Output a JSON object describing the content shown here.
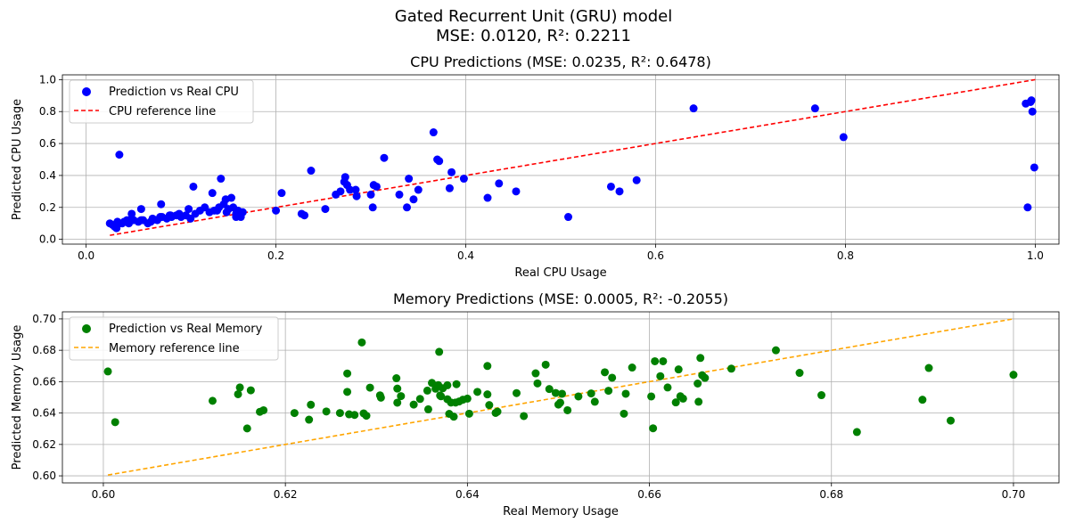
{
  "figure": {
    "title_line1": "Gated Recurrent Unit (GRU) model",
    "title_line2": "MSE: 0.0120, R²: 0.2211"
  },
  "chart_data": [
    {
      "type": "scatter",
      "title": "CPU Predictions (MSE: 0.0235, R²: 0.6478)",
      "xlabel": "Real CPU Usage",
      "ylabel": "Predicted CPU Usage",
      "xlim": [
        -0.025,
        1.025
      ],
      "ylim": [
        -0.03,
        1.03
      ],
      "xticks": [
        0.0,
        0.2,
        0.4,
        0.6,
        0.8,
        1.0
      ],
      "xtick_labels": [
        "0.0",
        "0.2",
        "0.4",
        "0.6",
        "0.8",
        "1.0"
      ],
      "yticks": [
        0.0,
        0.2,
        0.4,
        0.6,
        0.8,
        1.0
      ],
      "ytick_labels": [
        "0.0",
        "0.2",
        "0.4",
        "0.6",
        "0.8",
        "1.0"
      ],
      "grid": true,
      "legend_position": "top-left",
      "series": [
        {
          "name": "Prediction vs Real CPU",
          "kind": "scatter",
          "color": "#0000ff",
          "x": [
            0.025,
            0.03,
            0.032,
            0.035,
            0.04,
            0.045,
            0.05,
            0.055,
            0.06,
            0.065,
            0.07,
            0.075,
            0.08,
            0.085,
            0.09,
            0.095,
            0.1,
            0.105,
            0.11,
            0.115,
            0.12,
            0.125,
            0.13,
            0.135,
            0.14,
            0.145,
            0.15,
            0.155,
            0.16,
            0.165,
            0.028,
            0.033,
            0.038,
            0.043,
            0.048,
            0.058,
            0.068,
            0.078,
            0.088,
            0.098,
            0.108,
            0.138,
            0.148,
            0.158,
            0.163,
            0.035,
            0.048,
            0.058,
            0.07,
            0.079,
            0.089,
            0.113,
            0.133,
            0.142,
            0.147,
            0.153,
            0.158,
            0.2,
            0.206,
            0.227,
            0.23,
            0.237,
            0.252,
            0.263,
            0.268,
            0.272,
            0.273,
            0.275,
            0.278,
            0.284,
            0.285,
            0.3,
            0.302,
            0.303,
            0.306,
            0.314,
            0.33,
            0.338,
            0.34,
            0.345,
            0.35,
            0.366,
            0.37,
            0.372,
            0.383,
            0.385,
            0.398,
            0.423,
            0.435,
            0.453,
            0.508,
            0.553,
            0.562,
            0.58,
            0.64,
            0.768,
            0.798,
            0.99,
            0.992,
            0.995,
            0.996,
            0.997,
            0.999
          ],
          "y": [
            0.1,
            0.08,
            0.07,
            0.1,
            0.11,
            0.1,
            0.12,
            0.11,
            0.12,
            0.1,
            0.13,
            0.12,
            0.14,
            0.13,
            0.14,
            0.15,
            0.14,
            0.15,
            0.13,
            0.16,
            0.18,
            0.2,
            0.17,
            0.18,
            0.2,
            0.22,
            0.19,
            0.2,
            0.18,
            0.17,
            0.09,
            0.11,
            0.1,
            0.12,
            0.16,
            0.12,
            0.11,
            0.14,
            0.15,
            0.16,
            0.19,
            0.18,
            0.17,
            0.16,
            0.14,
            0.53,
            0.13,
            0.19,
            0.12,
            0.22,
            0.15,
            0.33,
            0.29,
            0.38,
            0.25,
            0.26,
            0.14,
            0.18,
            0.29,
            0.16,
            0.15,
            0.43,
            0.19,
            0.28,
            0.3,
            0.36,
            0.39,
            0.34,
            0.31,
            0.31,
            0.27,
            0.28,
            0.2,
            0.34,
            0.33,
            0.51,
            0.28,
            0.2,
            0.38,
            0.25,
            0.31,
            0.67,
            0.5,
            0.49,
            0.32,
            0.42,
            0.38,
            0.26,
            0.35,
            0.3,
            0.14,
            0.33,
            0.3,
            0.37,
            0.82,
            0.82,
            0.64,
            0.85,
            0.2,
            0.86,
            0.87,
            0.8,
            0.45
          ]
        },
        {
          "name": "CPU reference line",
          "kind": "line",
          "style": "dashed",
          "color": "#ff0000",
          "x": [
            0.025,
            1.0
          ],
          "y": [
            0.025,
            1.0
          ]
        }
      ]
    },
    {
      "type": "scatter",
      "title": "Memory Predictions (MSE: 0.0005, R²: -0.2055)",
      "xlabel": "Real Memory Usage",
      "ylabel": "Predicted Memory Usage",
      "xlim": [
        0.5955,
        0.705
      ],
      "ylim": [
        0.5955,
        0.7045
      ],
      "xticks": [
        0.6,
        0.62,
        0.64,
        0.66,
        0.68,
        0.7
      ],
      "xtick_labels": [
        "0.60",
        "0.62",
        "0.64",
        "0.66",
        "0.68",
        "0.70"
      ],
      "yticks": [
        0.6,
        0.62,
        0.64,
        0.66,
        0.68,
        0.7
      ],
      "ytick_labels": [
        "0.60",
        "0.62",
        "0.64",
        "0.66",
        "0.68",
        "0.70"
      ],
      "grid": true,
      "legend_position": "top-left",
      "series": [
        {
          "name": "Prediction vs Real Memory",
          "kind": "scatter",
          "color": "#008000",
          "x": [
            0.6005,
            0.6013,
            0.612,
            0.6148,
            0.615,
            0.6158,
            0.6162,
            0.6172,
            0.6176,
            0.621,
            0.6226,
            0.6228,
            0.6245,
            0.626,
            0.6268,
            0.6268,
            0.627,
            0.6276,
            0.6284,
            0.6286,
            0.6289,
            0.6293,
            0.6304,
            0.6305,
            0.6322,
            0.6323,
            0.6323,
            0.6327,
            0.6341,
            0.6348,
            0.6356,
            0.6357,
            0.6361,
            0.6365,
            0.6368,
            0.6369,
            0.637,
            0.6371,
            0.6373,
            0.6378,
            0.6378,
            0.638,
            0.6382,
            0.6385,
            0.6387,
            0.6388,
            0.6391,
            0.6395,
            0.64,
            0.6402,
            0.6411,
            0.6422,
            0.6422,
            0.6424,
            0.6431,
            0.6433,
            0.6454,
            0.6462,
            0.6475,
            0.6477,
            0.6486,
            0.649,
            0.6497,
            0.65,
            0.6502,
            0.6504,
            0.651,
            0.6522,
            0.6536,
            0.654,
            0.6551,
            0.6555,
            0.6559,
            0.6572,
            0.6574,
            0.6581,
            0.6602,
            0.6604,
            0.6606,
            0.6612,
            0.6615,
            0.662,
            0.6629,
            0.6632,
            0.6634,
            0.6637,
            0.6653,
            0.6654,
            0.6656,
            0.6658,
            0.6661,
            0.669,
            0.6739,
            0.6765,
            0.6789,
            0.6828,
            0.69,
            0.6907,
            0.6931,
            0.7
          ],
          "y": [
            0.6665,
            0.6342,
            0.6478,
            0.652,
            0.6563,
            0.6302,
            0.6545,
            0.6408,
            0.6418,
            0.64,
            0.6358,
            0.6453,
            0.641,
            0.64,
            0.6652,
            0.6535,
            0.6392,
            0.6388,
            0.685,
            0.6398,
            0.6383,
            0.6562,
            0.6513,
            0.6498,
            0.6622,
            0.6556,
            0.6466,
            0.6508,
            0.6454,
            0.649,
            0.6543,
            0.6424,
            0.6592,
            0.6555,
            0.6578,
            0.679,
            0.6512,
            0.6507,
            0.6558,
            0.6488,
            0.6577,
            0.6395,
            0.6467,
            0.6377,
            0.6467,
            0.6584,
            0.6474,
            0.6485,
            0.6492,
            0.6396,
            0.6535,
            0.67,
            0.6519,
            0.6451,
            0.6401,
            0.6409,
            0.6527,
            0.6381,
            0.6653,
            0.6589,
            0.6708,
            0.6553,
            0.6528,
            0.6454,
            0.6466,
            0.6523,
            0.6418,
            0.6506,
            0.6525,
            0.6472,
            0.666,
            0.6542,
            0.6625,
            0.6396,
            0.6523,
            0.669,
            0.6506,
            0.6303,
            0.673,
            0.6635,
            0.673,
            0.6563,
            0.6468,
            0.6678,
            0.6507,
            0.6492,
            0.6588,
            0.6472,
            0.6751,
            0.6641,
            0.6624,
            0.6683,
            0.68,
            0.6656,
            0.6514,
            0.6279,
            0.6485,
            0.6687,
            0.6352,
            0.6644
          ]
        },
        {
          "name": "Memory reference line",
          "kind": "line",
          "style": "dashed",
          "color": "#ffa500",
          "x": [
            0.6005,
            0.7
          ],
          "y": [
            0.6005,
            0.7
          ]
        }
      ]
    }
  ]
}
